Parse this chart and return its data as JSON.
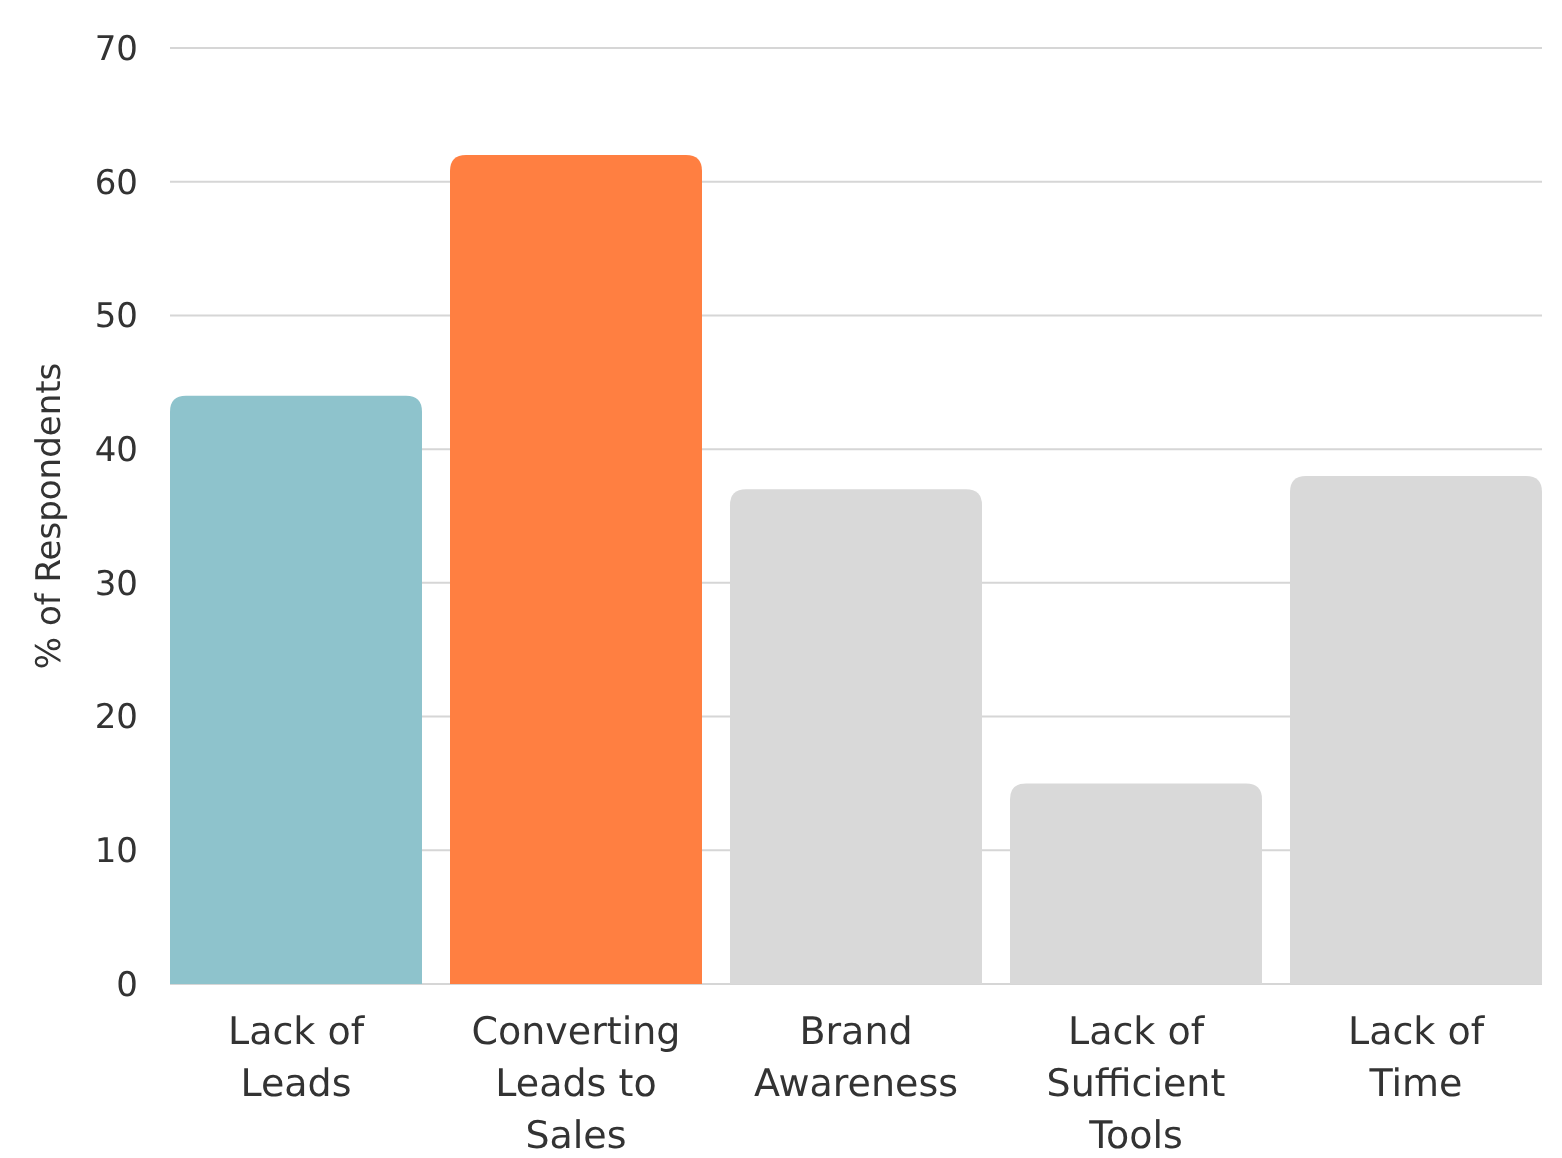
{
  "chart_data": {
    "type": "bar",
    "ylabel": "% of Respondents",
    "categories": [
      "Lack of Leads",
      "Converting Leads to Sales",
      "Brand Awareness",
      "Lack of Sufficient Tools",
      "Lack of Time"
    ],
    "values": [
      44,
      62,
      37,
      15,
      38
    ],
    "colors": [
      "#8ec3cc",
      "#ff7f41",
      "#d9d9d9",
      "#d9d9d9",
      "#d9d9d9"
    ],
    "ylim": [
      0,
      70
    ],
    "yticks": [
      0,
      10,
      20,
      30,
      40,
      50,
      60,
      70
    ],
    "grid": "y"
  }
}
